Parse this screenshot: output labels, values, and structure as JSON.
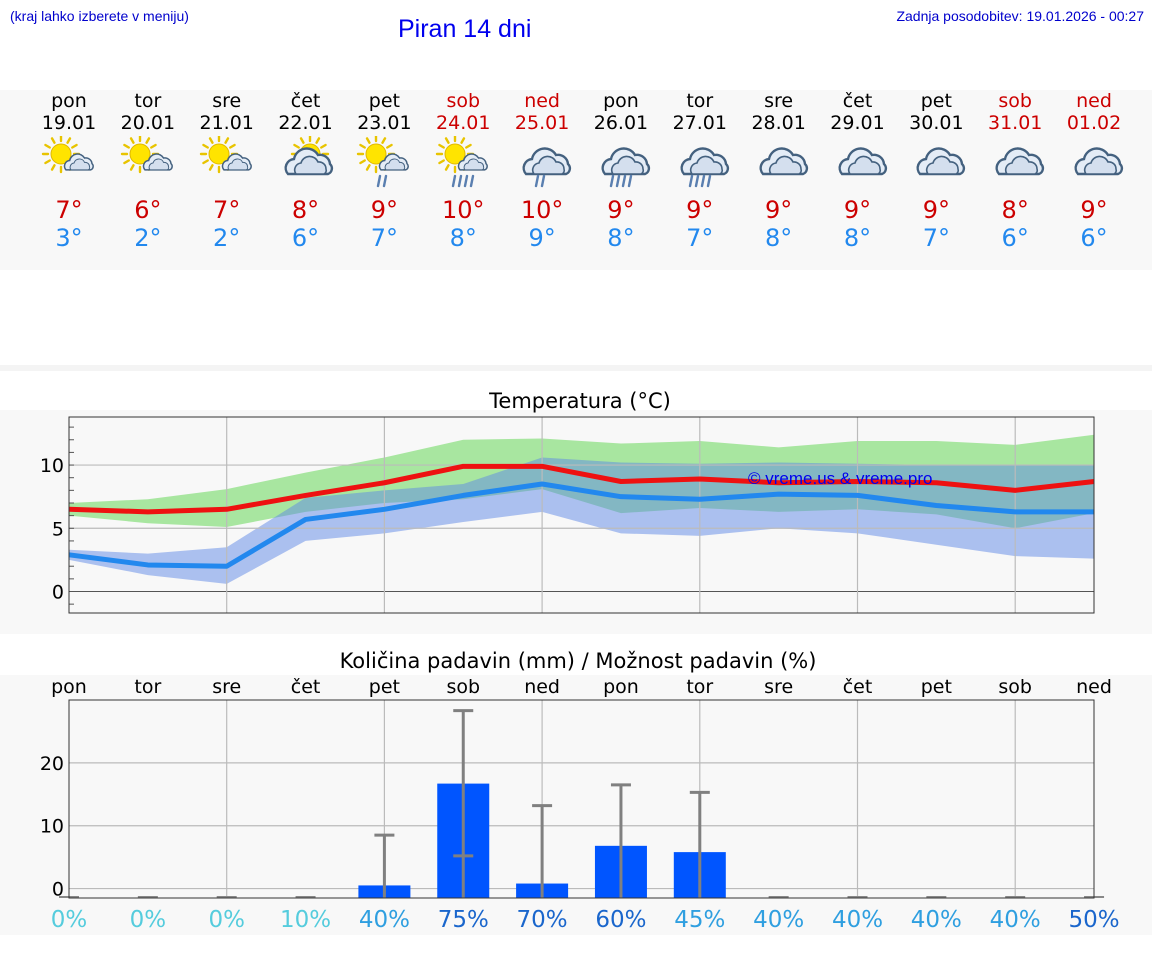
{
  "header": {
    "hint": "(kraj lahko izberete v meniju)",
    "title": "Piran 14 dni",
    "updated": "Zadnja posodobitev: 19.01.2026 - 00:27"
  },
  "days": [
    {
      "wd": "pon",
      "date": "19.01",
      "icon": "sun-cloud-icon",
      "tmax": "7°",
      "tmin": "3°",
      "weekend": false
    },
    {
      "wd": "tor",
      "date": "20.01",
      "icon": "sun-cloud-icon",
      "tmax": "6°",
      "tmin": "2°",
      "weekend": false
    },
    {
      "wd": "sre",
      "date": "21.01",
      "icon": "sun-cloud-icon",
      "tmax": "7°",
      "tmin": "2°",
      "weekend": false
    },
    {
      "wd": "čet",
      "date": "22.01",
      "icon": "partly-cloudy-icon",
      "tmax": "8°",
      "tmin": "6°",
      "weekend": false
    },
    {
      "wd": "pet",
      "date": "23.01",
      "icon": "sun-cloud-drizzle-icon",
      "tmax": "9°",
      "tmin": "7°",
      "weekend": false
    },
    {
      "wd": "sob",
      "date": "24.01",
      "icon": "sun-cloud-rain-icon",
      "tmax": "10°",
      "tmin": "8°",
      "weekend": true
    },
    {
      "wd": "ned",
      "date": "25.01",
      "icon": "cloud-drizzle-icon",
      "tmax": "10°",
      "tmin": "9°",
      "weekend": true
    },
    {
      "wd": "pon",
      "date": "26.01",
      "icon": "cloud-rain-icon",
      "tmax": "9°",
      "tmin": "8°",
      "weekend": false
    },
    {
      "wd": "tor",
      "date": "27.01",
      "icon": "cloud-rain-icon",
      "tmax": "9°",
      "tmin": "7°",
      "weekend": false
    },
    {
      "wd": "sre",
      "date": "28.01",
      "icon": "cloud-icon",
      "tmax": "9°",
      "tmin": "8°",
      "weekend": false
    },
    {
      "wd": "čet",
      "date": "29.01",
      "icon": "cloud-icon",
      "tmax": "9°",
      "tmin": "8°",
      "weekend": false
    },
    {
      "wd": "pet",
      "date": "30.01",
      "icon": "cloud-icon",
      "tmax": "9°",
      "tmin": "7°",
      "weekend": false
    },
    {
      "wd": "sob",
      "date": "31.01",
      "icon": "cloud-icon",
      "tmax": "8°",
      "tmin": "6°",
      "weekend": true
    },
    {
      "wd": "ned",
      "date": "01.02",
      "icon": "cloud-icon",
      "tmax": "9°",
      "tmin": "6°",
      "weekend": true
    }
  ],
  "colors": {
    "tmax": "#cc0000",
    "tmin": "#2288ee",
    "weekend": "#cc0000",
    "band_green": "#a8e6a0",
    "band_blue": "#a9bff0",
    "band_overlap": "#7fc6a0",
    "max_line": "#ee1111",
    "min_line": "#2288ee",
    "bar": "#0055ff",
    "error": "#808080"
  },
  "chart_data": [
    {
      "type": "line",
      "title": "Temperatura (°C)",
      "watermark": "© vreme.us & vreme.pro",
      "x": [
        0,
        1,
        2,
        3,
        4,
        5,
        6,
        7,
        8,
        9,
        10,
        11,
        12,
        13
      ],
      "ylim": [
        -1.7,
        13.8
      ],
      "yticks": [
        0,
        5,
        10
      ],
      "grid": true,
      "series": [
        {
          "name": "max",
          "values": [
            6.5,
            6.3,
            6.5,
            7.6,
            8.6,
            9.9,
            9.9,
            8.7,
            8.9,
            8.6,
            8.7,
            8.6,
            8.0,
            8.7
          ],
          "band_low": [
            6.0,
            5.4,
            5.1,
            6.3,
            7.0,
            7.3,
            8.1,
            6.2,
            6.6,
            6.3,
            6.5,
            6.1,
            5.0,
            6.2
          ],
          "band_high": [
            7.0,
            7.3,
            8.1,
            9.4,
            10.6,
            12.0,
            12.1,
            11.7,
            11.9,
            11.4,
            11.9,
            11.9,
            11.6,
            12.4
          ]
        },
        {
          "name": "min",
          "values": [
            2.9,
            2.1,
            2.0,
            5.7,
            6.5,
            7.6,
            8.5,
            7.5,
            7.3,
            7.7,
            7.6,
            6.8,
            6.3,
            6.3
          ],
          "band_low": [
            2.5,
            1.3,
            0.6,
            4.0,
            4.6,
            5.5,
            6.3,
            4.6,
            4.4,
            5.0,
            4.6,
            3.7,
            2.8,
            2.6
          ],
          "band_high": [
            3.3,
            3.0,
            3.5,
            7.4,
            8.0,
            8.5,
            10.6,
            10.2,
            10.1,
            10.2,
            10.1,
            10.0,
            10.0,
            10.0
          ]
        }
      ]
    },
    {
      "type": "bar",
      "title": "Količina padavin (mm) / Možnost padavin (%)",
      "categories": [
        "pon",
        "tor",
        "sre",
        "čet",
        "pet",
        "sob",
        "ned",
        "pon",
        "tor",
        "sre",
        "čet",
        "pet",
        "sob",
        "ned"
      ],
      "values": [
        0,
        0,
        0,
        0,
        0.5,
        16.7,
        0.8,
        6.8,
        5.8,
        0,
        0,
        0,
        0,
        0
      ],
      "error_high": [
        0,
        0,
        0,
        0,
        8.5,
        28.3,
        13.2,
        16.5,
        15.3,
        0,
        0,
        0,
        0,
        0
      ],
      "error_low": [
        0,
        0,
        0,
        0,
        0,
        5.2,
        0,
        0,
        0,
        0,
        0,
        0,
        0,
        0
      ],
      "probability": [
        "0%",
        "0%",
        "0%",
        "10%",
        "40%",
        "75%",
        "70%",
        "60%",
        "45%",
        "40%",
        "40%",
        "40%",
        "40%",
        "50%"
      ],
      "ylim": [
        -1.5,
        30
      ],
      "yticks": [
        0,
        10,
        20
      ],
      "grid": true
    }
  ]
}
